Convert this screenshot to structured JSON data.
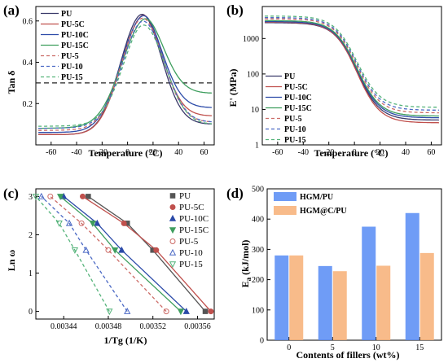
{
  "chart_data": [
    {
      "panel": "(a)",
      "type": "line",
      "xlabel": "Temperature (°C)",
      "ylabel": "Tan δ",
      "xlim": [
        -72,
        68
      ],
      "ylim": [
        0,
        0.67
      ],
      "xticks": [
        -60,
        -40,
        -20,
        0,
        20,
        40,
        60
      ],
      "yticks": [
        0.2,
        0.4,
        0.6
      ],
      "tick_labels_x": [
        "-60",
        "-40",
        "-20",
        "0",
        "20",
        "40",
        "60"
      ],
      "tick_labels_y": [
        "0.2",
        "0.4",
        "0.6"
      ],
      "reference_line": 0.3,
      "legend_position": "top-left",
      "series": [
        {
          "name": "PU",
          "style": "solid",
          "color": "#3a3a6a",
          "base": 0.05,
          "peak": 0.63,
          "peak_x": 10,
          "end": 0.1,
          "shoulder": 0.0
        },
        {
          "name": "PU-5C",
          "style": "solid",
          "color": "#c0504d",
          "base": 0.05,
          "peak": 0.62,
          "peak_x": 10,
          "end": 0.14,
          "shoulder": 0.0
        },
        {
          "name": "PU-10C",
          "style": "solid",
          "color": "#2b4aa8",
          "base": 0.06,
          "peak": 0.6,
          "peak_x": 10,
          "end": 0.18,
          "shoulder": 0.04
        },
        {
          "name": "PU-15C",
          "style": "solid",
          "color": "#3e9e5e",
          "base": 0.08,
          "peak": 0.56,
          "peak_x": 11,
          "end": 0.25,
          "shoulder": 0.09
        },
        {
          "name": "PU-5",
          "style": "dashed",
          "color": "#cc6b66",
          "base": 0.07,
          "peak": 0.59,
          "peak_x": 12,
          "end": 0.11,
          "shoulder": 0.05
        },
        {
          "name": "PU-10",
          "style": "dashed",
          "color": "#4a68c4",
          "base": 0.08,
          "peak": 0.57,
          "peak_x": 13,
          "end": 0.11,
          "shoulder": 0.06
        },
        {
          "name": "PU-15",
          "style": "dashed",
          "color": "#55b37a",
          "base": 0.09,
          "peak": 0.55,
          "peak_x": 14,
          "end": 0.1,
          "shoulder": 0.06
        }
      ]
    },
    {
      "panel": "(b)",
      "type": "line",
      "xlabel": "Temperature (°C)",
      "ylabel": "E' (MPa)",
      "scale_y": "log",
      "xlim": [
        -72,
        68
      ],
      "ylim": [
        1,
        8000
      ],
      "xticks": [
        -60,
        -40,
        -20,
        0,
        20,
        40,
        60
      ],
      "yticks": [
        1,
        10,
        100,
        1000
      ],
      "tick_labels_x": [
        "-60",
        "-40",
        "-20",
        "0",
        "20",
        "40",
        "60"
      ],
      "tick_labels_y": [
        "1",
        "10",
        "100",
        "1000"
      ],
      "legend_position": "bottom-left",
      "series": [
        {
          "name": "PU",
          "style": "solid",
          "color": "#3a3a6a",
          "low_T": 2800,
          "high_T": 5.0
        },
        {
          "name": "PU-5C",
          "style": "solid",
          "color": "#c0504d",
          "low_T": 2900,
          "high_T": 4.2
        },
        {
          "name": "PU-10C",
          "style": "solid",
          "color": "#2b4aa8",
          "low_T": 3000,
          "high_T": 5.8
        },
        {
          "name": "PU-15C",
          "style": "solid",
          "color": "#3e9e5e",
          "low_T": 3200,
          "high_T": 6.5
        },
        {
          "name": "PU-5",
          "style": "dashed",
          "color": "#cc6b66",
          "low_T": 3600,
          "high_T": 8.0
        },
        {
          "name": "PU-10",
          "style": "dashed",
          "color": "#4a68c4",
          "low_T": 3900,
          "high_T": 9.5
        },
        {
          "name": "PU-15",
          "style": "dashed",
          "color": "#55b37a",
          "low_T": 4300,
          "high_T": 11.5
        }
      ]
    },
    {
      "panel": "(c)",
      "type": "scatter",
      "xlabel": "1/Tg (1/K)",
      "ylabel": "Ln ω",
      "xlim": [
        0.003415,
        0.003575
      ],
      "ylim": [
        -0.2,
        3.2
      ],
      "xticks": [
        0.00344,
        0.00348,
        0.00352,
        0.00356
      ],
      "yticks": [
        0,
        1,
        2,
        3
      ],
      "tick_labels_x": [
        "0.00344",
        "0.00348",
        "0.00352",
        "0.00356"
      ],
      "tick_labels_y": [
        "0",
        "1",
        "2",
        "3"
      ],
      "legend_position": "right",
      "series": [
        {
          "name": "PU",
          "marker": "square",
          "filled": true,
          "style": "solid",
          "color": "#555555",
          "x": [
            0.003567,
            0.00352,
            0.003497,
            0.003462
          ],
          "y": [
            0,
            1.6,
            2.3,
            3.0
          ]
        },
        {
          "name": "PU-5C",
          "marker": "circle",
          "filled": true,
          "style": "solid",
          "color": "#c0504d",
          "x": [
            0.003572,
            0.003523,
            0.003494,
            0.003457
          ],
          "y": [
            0,
            1.6,
            2.3,
            3.0
          ]
        },
        {
          "name": "PU-10C",
          "marker": "triangle",
          "filled": true,
          "style": "solid",
          "color": "#2b4aa8",
          "x": [
            0.00355,
            0.003492,
            0.00347,
            0.00344
          ],
          "y": [
            0,
            1.6,
            2.3,
            3.0
          ]
        },
        {
          "name": "PU-15C",
          "marker": "tri-down",
          "filled": true,
          "style": "solid",
          "color": "#3e9e5e",
          "x": [
            0.003545,
            0.003486,
            0.003466,
            0.003437
          ],
          "y": [
            0,
            1.6,
            2.3,
            3.0
          ]
        },
        {
          "name": "PU-5",
          "marker": "circle",
          "filled": false,
          "style": "dashed",
          "color": "#cc6b66",
          "x": [
            0.003532,
            0.00348,
            0.003456,
            0.003428
          ],
          "y": [
            0,
            1.6,
            2.3,
            3.0
          ]
        },
        {
          "name": "PU-10",
          "marker": "triangle",
          "filled": false,
          "style": "dashed",
          "color": "#4a68c4",
          "x": [
            0.003497,
            0.00346,
            0.003445,
            0.00342
          ],
          "y": [
            0,
            1.6,
            2.3,
            3.0
          ]
        },
        {
          "name": "PU-15",
          "marker": "tri-down",
          "filled": false,
          "style": "dashed",
          "color": "#55b37a",
          "x": [
            0.003481,
            0.00345,
            0.003436,
            0.003415
          ],
          "y": [
            0,
            1.6,
            2.3,
            3.0
          ]
        }
      ]
    },
    {
      "panel": "(d)",
      "type": "bar",
      "xlabel": "Contents of fillers (wt%)",
      "ylabel": "Ea (kJ/mol)",
      "ylabel_main": "E",
      "ylabel_sub": "a",
      "ylabel_unit": " (kJ/mol)",
      "ylim": [
        0,
        500
      ],
      "yticks": [
        0,
        100,
        200,
        300,
        400,
        500
      ],
      "tick_labels_y": [
        "0",
        "100",
        "200",
        "300",
        "400",
        "500"
      ],
      "categories": [
        "0",
        "5",
        "10",
        "15"
      ],
      "legend_position": "top-left",
      "series": [
        {
          "name": "HGM/PU",
          "color": "#5b8ef5",
          "values": [
            280,
            245,
            375,
            420
          ]
        },
        {
          "name": "HGM@C/PU",
          "color": "#f7b27a",
          "values": [
            280,
            228,
            246,
            288
          ]
        }
      ]
    }
  ]
}
